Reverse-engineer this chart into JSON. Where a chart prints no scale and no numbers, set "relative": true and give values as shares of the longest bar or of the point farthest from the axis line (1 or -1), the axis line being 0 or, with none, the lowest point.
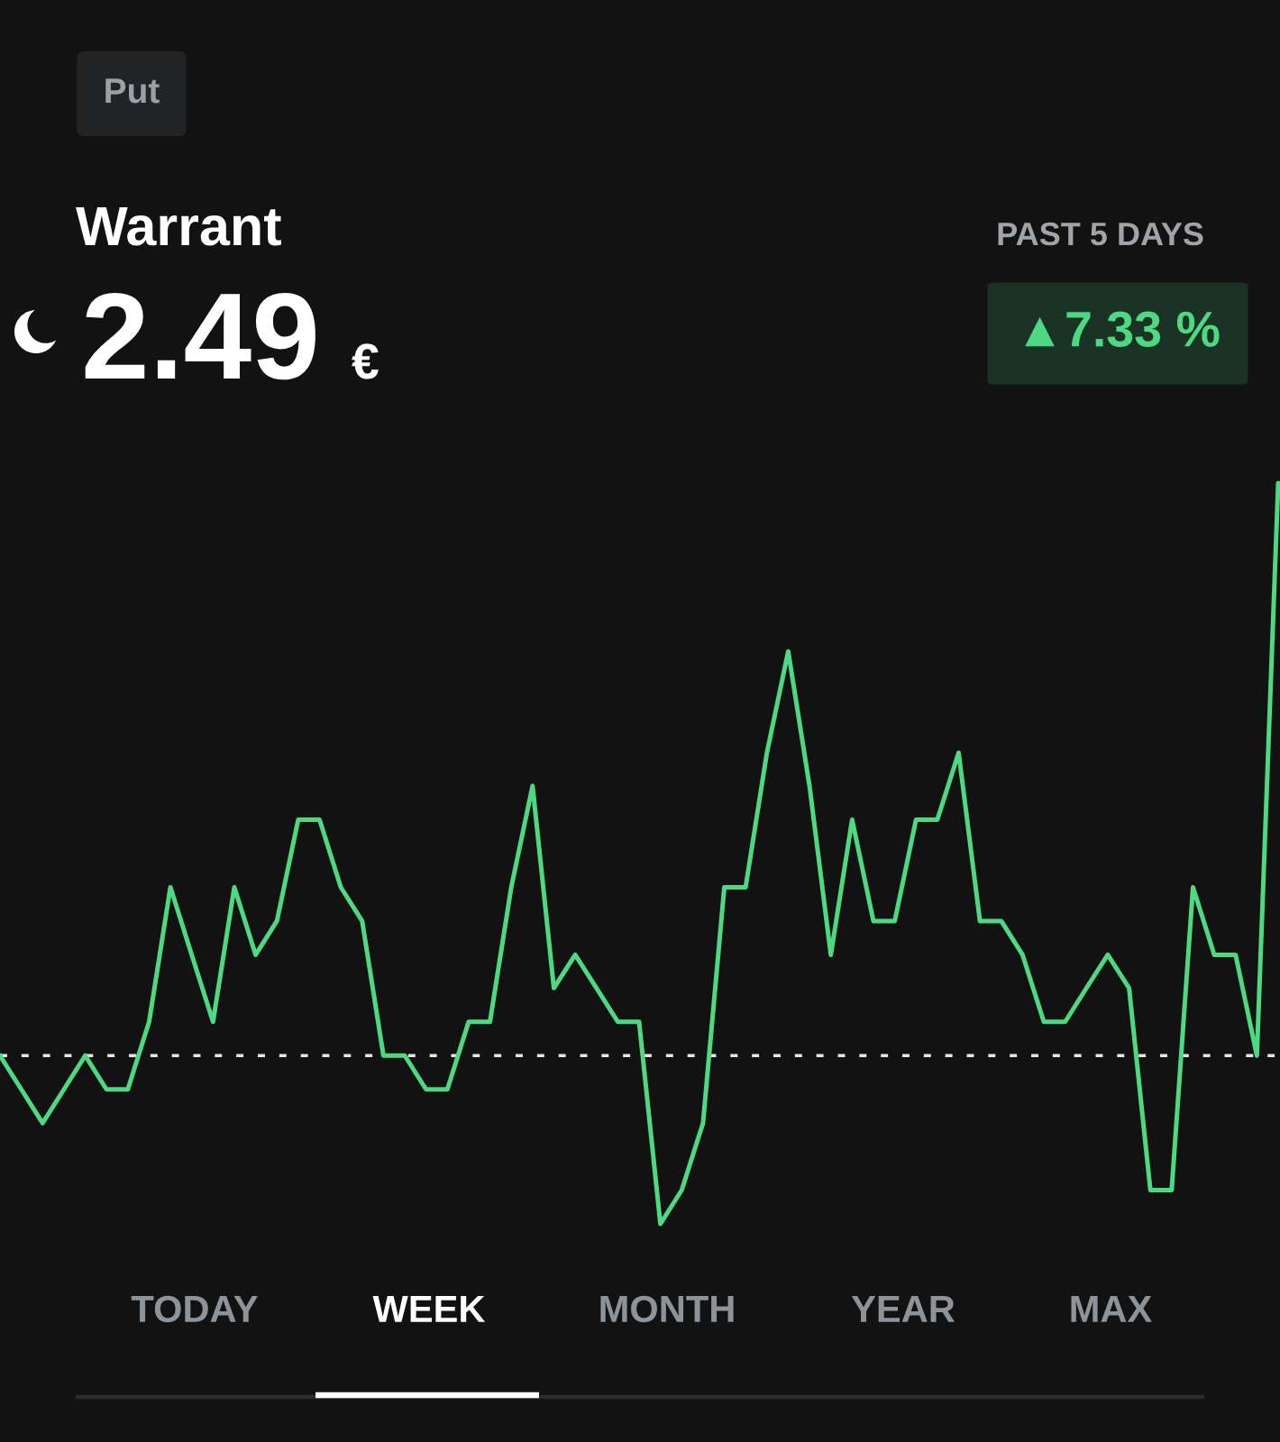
{
  "chart_data": {
    "type": "line",
    "title": "Warrant",
    "relative": true,
    "categories": [
      null,
      null,
      null,
      null,
      null,
      null,
      null,
      null,
      null,
      null,
      null,
      null,
      null,
      null,
      null,
      null,
      null,
      null,
      null,
      null,
      null,
      null,
      null,
      null,
      null,
      null,
      null,
      null,
      null,
      null,
      null,
      null,
      null,
      null,
      null,
      null,
      null,
      null,
      null,
      null,
      null,
      null,
      null,
      null,
      null,
      null,
      null,
      null,
      null,
      null,
      null,
      null,
      null,
      null,
      null,
      null,
      null,
      null,
      null,
      null,
      null
    ],
    "series": [
      {
        "color": "#4cd981",
        "values": [
          0,
          -0.059,
          -0.118,
          -0.059,
          0,
          -0.059,
          -0.059,
          0.059,
          0.294,
          0.176,
          0.059,
          0.294,
          0.176,
          0.235,
          0.412,
          0.412,
          0.294,
          0.235,
          0,
          0,
          -0.059,
          -0.059,
          0.059,
          0.059,
          0.294,
          0.471,
          0.118,
          0.176,
          0.118,
          0.059,
          0.059,
          -0.294,
          -0.235,
          -0.118,
          0.294,
          0.294,
          0.529,
          0.706,
          0.471,
          0.176,
          0.412,
          0.235,
          0.235,
          0.412,
          0.412,
          0.529,
          0.235,
          0.235,
          0.176,
          0.059,
          0.059,
          0.118,
          0.176,
          0.118,
          -0.235,
          -0.235,
          0.294,
          0.176,
          0.176,
          0,
          1
        ]
      }
    ],
    "ref_lines": [
      {
        "axis": "y",
        "value": 0,
        "color": "#e6e6e6",
        "line_style": "dashed"
      }
    ],
    "line_style": "solid",
    "annotations": [
      "Put",
      "2.49",
      "€",
      "PAST 5 DAYS",
      "▲7.33 %",
      "TODAY",
      "WEEK",
      "MONTH",
      "YEAR",
      "MAX"
    ]
  }
}
